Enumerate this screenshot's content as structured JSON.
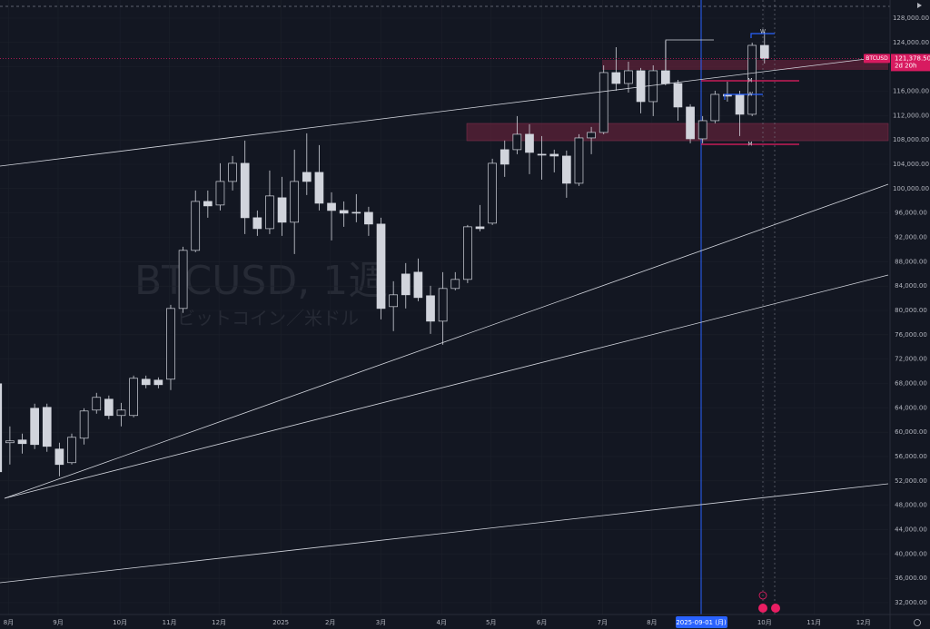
{
  "chart_data": {
    "type": "candlestick",
    "watermark": "BTCUSD, 1週",
    "watermark_subtitle": "ビットコイン／米ドル",
    "colors": {
      "up": "#131722",
      "down": "#d1d4dc",
      "wick": "#d1d4dc",
      "background": "#131722",
      "last_price": "#d81b60"
    },
    "open": [
      67950,
      58270,
      58720,
      63930,
      64080,
      57230,
      54990,
      59010,
      63630,
      65420,
      62740,
      62740,
      68700,
      68550,
      68700,
      80320,
      89860,
      97900,
      97310,
      101180,
      104160,
      95220,
      93430,
      98500,
      94480,
      102670,
      102670,
      97600,
      96410,
      96110,
      96110,
      94180,
      80620,
      85980,
      86280,
      82410,
      78230,
      83600,
      85090,
      93730,
      94330,
      106400,
      106400,
      108930,
      105650,
      105650,
      105350,
      100880,
      108330,
      109230,
      119060,
      117270,
      119360,
      114290,
      119360,
      117270,
      113400,
      108180,
      111160,
      115480,
      115480,
      112210,
      123530
    ],
    "high": [
      68400,
      60950,
      59760,
      64680,
      64680,
      58270,
      59760,
      63930,
      66460,
      66020,
      64820,
      69290,
      69290,
      69000,
      80920,
      90450,
      99690,
      99690,
      104160,
      105350,
      107890,
      96410,
      102970,
      101930,
      106400,
      109080,
      107140,
      99390,
      97900,
      99090,
      97010,
      95220,
      84790,
      87770,
      88520,
      84050,
      86280,
      86280,
      94030,
      97310,
      104910,
      107890,
      111910,
      110570,
      108630,
      106400,
      106250,
      108930,
      110120,
      120250,
      123230,
      120850,
      119810,
      120250,
      124280,
      117870,
      113850,
      111910,
      116080,
      117570,
      116080,
      123980,
      125770
    ],
    "low": [
      49330,
      54690,
      56480,
      57230,
      56780,
      52760,
      54690,
      57970,
      63040,
      62140,
      60950,
      62440,
      67210,
      67210,
      66910,
      79580,
      89560,
      95220,
      96410,
      99690,
      92540,
      92240,
      92540,
      92240,
      89260,
      98950,
      96410,
      91500,
      93730,
      94480,
      92240,
      78530,
      76600,
      80320,
      81510,
      76150,
      74360,
      83300,
      84490,
      92990,
      94030,
      101930,
      105650,
      102370,
      101480,
      102670,
      98500,
      100440,
      105650,
      108930,
      116080,
      115780,
      112360,
      111910,
      116970,
      111160,
      107440,
      107440,
      110720,
      114290,
      108630,
      111910,
      120550
    ],
    "close": [
      53500,
      58570,
      58120,
      57970,
      57670,
      54690,
      59160,
      63480,
      65720,
      62740,
      63630,
      68850,
      67800,
      67800,
      80320,
      89860,
      97900,
      97160,
      101180,
      104160,
      95220,
      93430,
      98800,
      94480,
      101180,
      101180,
      97600,
      96410,
      95970,
      95970,
      94180,
      80320,
      82560,
      82560,
      82110,
      78230,
      83600,
      85090,
      93730,
      93430,
      104160,
      104010,
      108930,
      105950,
      105500,
      105350,
      100880,
      108330,
      109230,
      119060,
      117270,
      119360,
      114290,
      119360,
      117270,
      113400,
      108180,
      111160,
      115480,
      115190,
      112210,
      123530,
      121378.5
    ],
    "xlim": [
      0.2,
      72
    ],
    "xticks": [
      {
        "value": 0.9,
        "label": "8月"
      },
      {
        "value": 4.9,
        "label": "9月"
      },
      {
        "value": 9.9,
        "label": "10月"
      },
      {
        "value": 13.9,
        "label": "11月"
      },
      {
        "value": 17.9,
        "label": "12月"
      },
      {
        "value": 22.9,
        "label": "2025"
      },
      {
        "value": 26.9,
        "label": "2月"
      },
      {
        "value": 31,
        "label": "3月"
      },
      {
        "value": 35.9,
        "label": "4月"
      },
      {
        "value": 39.9,
        "label": "5月"
      },
      {
        "value": 44,
        "label": "6月"
      },
      {
        "value": 48.9,
        "label": "7月"
      },
      {
        "value": 52.9,
        "label": "8月"
      },
      {
        "value": 62,
        "label": "10月"
      },
      {
        "value": 66,
        "label": "11月"
      },
      {
        "value": 70,
        "label": "12月"
      }
    ],
    "ylim": [
      30060,
      130980
    ],
    "yticks": [
      {
        "value": 128000,
        "label": "128,000.00"
      },
      {
        "value": 124000,
        "label": "124,000.00"
      },
      {
        "value": 120000,
        "label": "120,000.00"
      },
      {
        "value": 116000,
        "label": "116,000.00"
      },
      {
        "value": 112000,
        "label": "112,000.00"
      },
      {
        "value": 108000,
        "label": "108,000.00"
      },
      {
        "value": 104000,
        "label": "104,000.00"
      },
      {
        "value": 100000,
        "label": "100,000.00"
      },
      {
        "value": 96000,
        "label": "96,000.00"
      },
      {
        "value": 92000,
        "label": "92,000.00"
      },
      {
        "value": 88000,
        "label": "88,000.00"
      },
      {
        "value": 84000,
        "label": "84,000.00"
      },
      {
        "value": 80000,
        "label": "80,000.00"
      },
      {
        "value": 76000,
        "label": "76,000.00"
      },
      {
        "value": 72000,
        "label": "72,000.00"
      },
      {
        "value": 68000,
        "label": "68,000.00"
      },
      {
        "value": 64000,
        "label": "64,000.00"
      },
      {
        "value": 60000,
        "label": "60,000.00"
      },
      {
        "value": 56000,
        "label": "56,000.00"
      },
      {
        "value": 52000,
        "label": "52,000.00"
      },
      {
        "value": 48000,
        "label": "48,000.00"
      },
      {
        "value": 44000,
        "label": "44,000.00"
      },
      {
        "value": 40000,
        "label": "40,000.00"
      },
      {
        "value": 36000,
        "label": "36,000.00"
      },
      {
        "value": 32000,
        "label": "32,000.00"
      }
    ],
    "last_price": {
      "symbol": "BTCUSD",
      "value": 121378.5,
      "label": "121,378.50",
      "countdown": "2d 20h"
    },
    "crosshair_label": "2025-09-01 (月)",
    "markers": [
      "W",
      "W",
      "M",
      "M"
    ]
  }
}
